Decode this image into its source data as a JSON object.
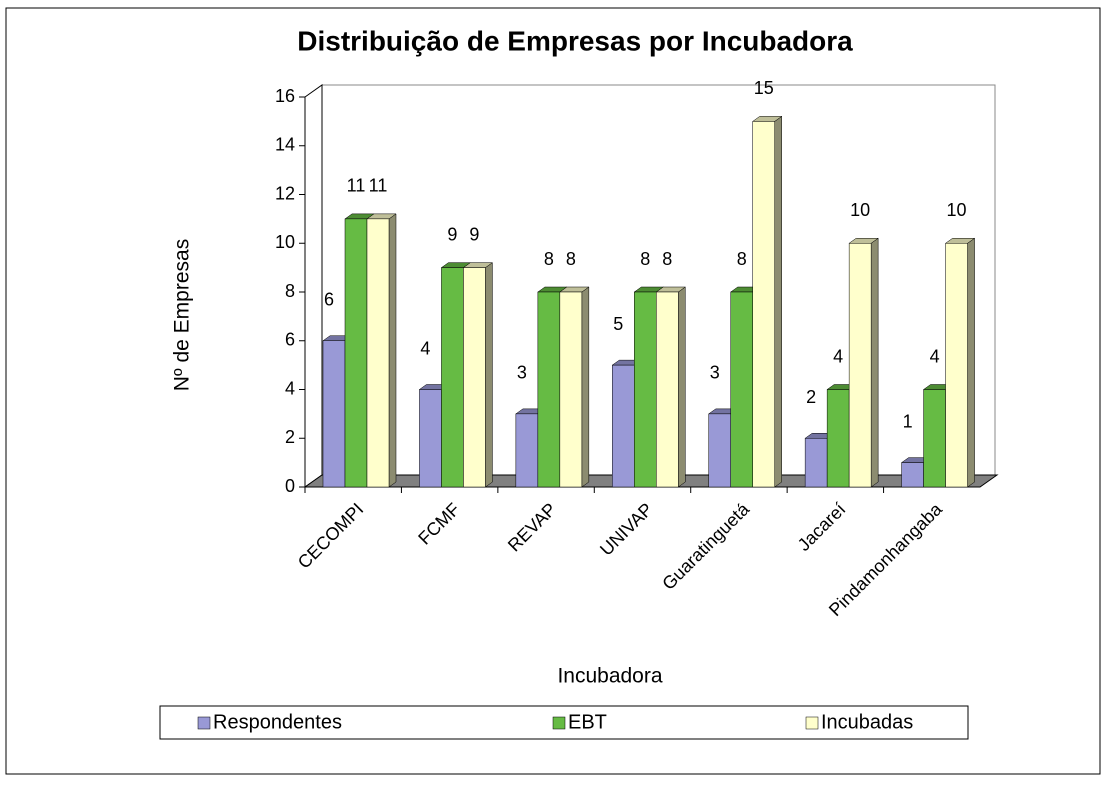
{
  "chart_data": {
    "type": "bar3d",
    "title": "Distribuição de Empresas por Incubadora",
    "x_label": "Incubadora",
    "y_label": "Nº de Empresas",
    "categories": [
      "CECOMPI",
      "FCMF",
      "REVAP",
      "UNIVAP",
      "Guaratinguetá",
      "Jacareí",
      "Pindamonhangaba"
    ],
    "series": [
      {
        "name": "Respondentes",
        "color": "#9999d6",
        "values": [
          6,
          4,
          3,
          5,
          3,
          2,
          1
        ]
      },
      {
        "name": "EBT",
        "color": "#66bb44",
        "values": [
          11,
          9,
          8,
          8,
          8,
          4,
          4
        ]
      },
      {
        "name": "Incubadas",
        "color": "#ffffcc",
        "values": [
          11,
          9,
          8,
          8,
          15,
          10,
          10
        ]
      }
    ],
    "ylim": [
      0,
      16
    ],
    "yticks": [
      0,
      2,
      4,
      6,
      8,
      10,
      12,
      14,
      16
    ],
    "legend": "bottom"
  }
}
